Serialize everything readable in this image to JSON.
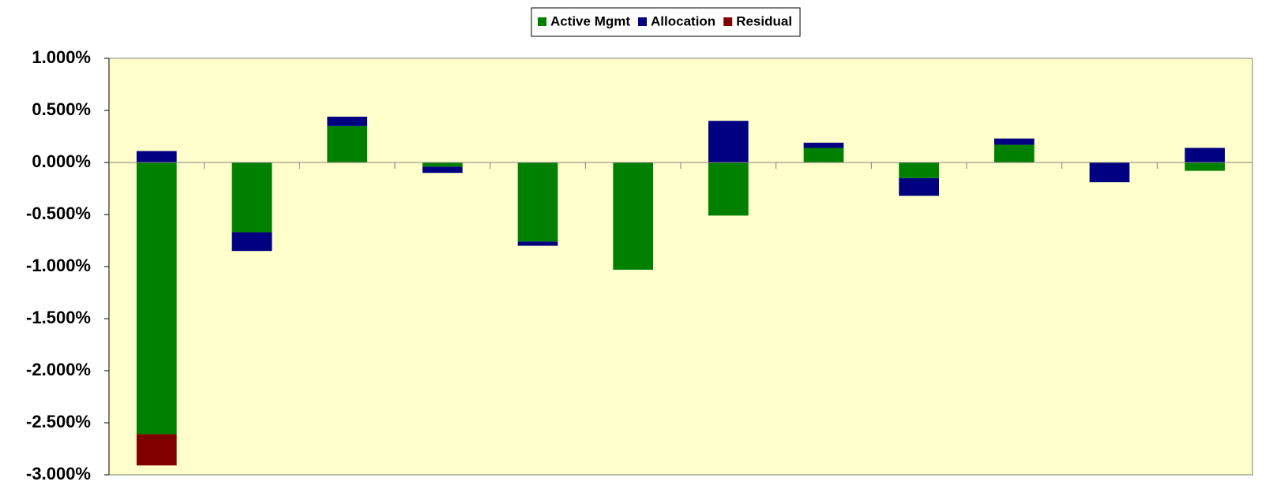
{
  "chart_data": {
    "type": "stacked-bar",
    "categories": [
      null,
      null,
      null,
      null,
      null,
      null,
      null,
      null,
      null,
      null,
      null,
      null
    ],
    "series": [
      {
        "name": "Active Mgmt",
        "color": "#008000",
        "values": [
          -2.61,
          -0.67,
          0.35,
          -0.04,
          -0.76,
          -1.03,
          -0.51,
          0.14,
          -0.15,
          0.17,
          0,
          -0.08
        ]
      },
      {
        "name": "Allocation",
        "color": "#000080",
        "values": [
          0.11,
          -0.18,
          0.09,
          -0.06,
          -0.04,
          0,
          0.4,
          0.05,
          -0.17,
          0.06,
          -0.19,
          0.14
        ]
      },
      {
        "name": "Residual",
        "color": "#800000",
        "values": [
          -0.3,
          0,
          0,
          0,
          0,
          0,
          0,
          0,
          0,
          0,
          0,
          0
        ]
      }
    ],
    "ylim": [
      -3,
      1
    ],
    "yticks": [
      {
        "value": 1,
        "label": "1.000%"
      },
      {
        "value": 0.5,
        "label": "0.500%"
      },
      {
        "value": 0,
        "label": "0.000%"
      },
      {
        "value": -0.5,
        "label": "-0.500%"
      },
      {
        "value": -1,
        "label": "-1.000%"
      },
      {
        "value": -1.5,
        "label": "-1.500%"
      },
      {
        "value": -2,
        "label": "-2.000%"
      },
      {
        "value": -2.5,
        "label": "-2.500%"
      },
      {
        "value": -3,
        "label": "-3.000%"
      }
    ],
    "background": "#ffffcc",
    "legend": "top"
  }
}
